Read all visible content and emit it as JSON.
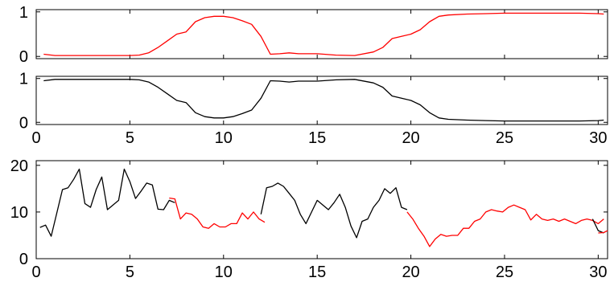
{
  "chart_data": [
    {
      "type": "line",
      "title": "",
      "xlabel": "",
      "ylabel": "",
      "xlim": [
        0,
        30.5
      ],
      "ylim": [
        -0.05,
        1.05
      ],
      "xticks": [],
      "yticks": [
        0,
        1
      ],
      "grid": false,
      "series": [
        {
          "color": "#ff0000",
          "x": [
            0.4,
            1,
            2,
            3,
            4,
            5,
            5.5,
            6,
            6.5,
            7,
            7.5,
            8,
            8.5,
            9,
            9.5,
            10,
            10.5,
            11,
            11.5,
            12,
            12.5,
            13,
            13.5,
            14,
            15,
            16,
            17,
            18,
            18.5,
            19,
            19.5,
            20,
            20.5,
            21,
            21.5,
            22,
            23,
            24,
            25,
            26,
            27,
            28,
            29,
            30,
            30.3
          ],
          "y": [
            0.05,
            0.02,
            0.02,
            0.02,
            0.02,
            0.02,
            0.03,
            0.08,
            0.2,
            0.35,
            0.5,
            0.55,
            0.78,
            0.87,
            0.9,
            0.9,
            0.87,
            0.8,
            0.72,
            0.45,
            0.05,
            0.06,
            0.08,
            0.06,
            0.06,
            0.03,
            0.02,
            0.1,
            0.2,
            0.4,
            0.45,
            0.5,
            0.6,
            0.78,
            0.9,
            0.93,
            0.95,
            0.96,
            0.97,
            0.97,
            0.97,
            0.97,
            0.97,
            0.96,
            0.95
          ]
        }
      ]
    },
    {
      "type": "line",
      "title": "",
      "xlabel": "",
      "ylabel": "",
      "xlim": [
        0,
        30.5
      ],
      "ylim": [
        -0.05,
        1.05
      ],
      "xticks": [
        0,
        5,
        10,
        15,
        20,
        25,
        30
      ],
      "yticks": [
        0,
        1
      ],
      "grid": false,
      "series": [
        {
          "color": "#000000",
          "x": [
            0.4,
            1,
            2,
            3,
            4,
            5,
            5.5,
            6,
            6.5,
            7,
            7.5,
            8,
            8.5,
            9,
            9.5,
            10,
            10.5,
            11,
            11.5,
            12,
            12.5,
            13,
            13.5,
            14,
            15,
            16,
            17,
            18,
            18.5,
            19,
            19.5,
            20,
            20.5,
            21,
            21.5,
            22,
            23,
            24,
            25,
            26,
            27,
            28,
            29,
            30,
            30.3
          ],
          "y": [
            0.95,
            0.98,
            0.98,
            0.98,
            0.98,
            0.98,
            0.97,
            0.92,
            0.8,
            0.65,
            0.5,
            0.45,
            0.22,
            0.13,
            0.1,
            0.1,
            0.13,
            0.2,
            0.28,
            0.55,
            0.95,
            0.94,
            0.92,
            0.94,
            0.94,
            0.97,
            0.98,
            0.9,
            0.8,
            0.6,
            0.55,
            0.5,
            0.4,
            0.22,
            0.1,
            0.07,
            0.05,
            0.04,
            0.03,
            0.03,
            0.03,
            0.03,
            0.03,
            0.04,
            0.05
          ]
        }
      ]
    },
    {
      "type": "line",
      "title": "",
      "xlabel": "",
      "ylabel": "",
      "xlim": [
        0,
        30.5
      ],
      "ylim": [
        0,
        21
      ],
      "xticks": [
        0,
        5,
        10,
        15,
        20,
        25,
        30
      ],
      "yticks": [
        0,
        10,
        20
      ],
      "grid": false,
      "series": [
        {
          "color": "#000000",
          "x": [
            0.2,
            0.5,
            0.8,
            1.1,
            1.4,
            1.7,
            2.0,
            2.3,
            2.6,
            2.9,
            3.2,
            3.5,
            3.8,
            4.1,
            4.4,
            4.7,
            5.0,
            5.3,
            5.6,
            5.9,
            6.2,
            6.5,
            6.8,
            7.1,
            7.4
          ],
          "y": [
            6.7,
            7.2,
            4.8,
            9.8,
            14.8,
            15.2,
            17.0,
            19.2,
            11.8,
            11.0,
            14.8,
            17.5,
            10.5,
            11.5,
            12.5,
            19.2,
            16.5,
            12.9,
            14.5,
            16.2,
            15.8,
            10.6,
            10.5,
            12.5,
            12.0
          ]
        },
        {
          "color": "#000000",
          "x": [
            12.0,
            12.3,
            12.6,
            12.9,
            13.2,
            13.5,
            13.8,
            14.1,
            14.4,
            14.7,
            15.0,
            15.3,
            15.6,
            15.9,
            16.2,
            16.5,
            16.8,
            17.1,
            17.4,
            17.7,
            18.0,
            18.3,
            18.6,
            18.9,
            19.2,
            19.5,
            19.8
          ],
          "y": [
            9.5,
            15.2,
            15.5,
            16.2,
            15.5,
            14.0,
            12.5,
            9.5,
            7.5,
            10.0,
            12.5,
            11.5,
            10.5,
            12.0,
            13.8,
            11.0,
            7.0,
            4.5,
            8.0,
            8.5,
            11.0,
            12.5,
            15.0,
            14.0,
            15.2,
            11.0,
            10.5
          ]
        },
        {
          "color": "#ff0000",
          "x": [
            7.1,
            7.4,
            7.7,
            8.0,
            8.3,
            8.6,
            8.9,
            9.2,
            9.5,
            9.8,
            10.1,
            10.4,
            10.7,
            11.0,
            11.3,
            11.6,
            11.9,
            12.2
          ],
          "y": [
            13.0,
            12.8,
            8.5,
            9.8,
            9.5,
            8.5,
            6.8,
            6.5,
            7.5,
            6.8,
            6.8,
            7.5,
            7.5,
            9.8,
            8.5,
            10.0,
            8.5,
            7.8
          ]
        },
        {
          "color": "#ff0000",
          "x": [
            19.8,
            20.1,
            20.4,
            20.7,
            21.0,
            21.3,
            21.6,
            21.9,
            22.2,
            22.5,
            22.8,
            23.1,
            23.4,
            23.7,
            24.0,
            24.3,
            24.6,
            24.9,
            25.2,
            25.5,
            25.8,
            26.1,
            26.4,
            26.7,
            27.0,
            27.3,
            27.6,
            27.9,
            28.2,
            28.5,
            28.8,
            29.1,
            29.4,
            29.7,
            30.0,
            30.3
          ],
          "y": [
            10.0,
            8.5,
            6.5,
            4.8,
            2.6,
            4.2,
            5.2,
            4.8,
            5.0,
            5.0,
            6.5,
            6.5,
            8.0,
            8.5,
            10.0,
            10.5,
            10.2,
            10.0,
            11.0,
            11.5,
            11.0,
            10.5,
            8.3,
            9.5,
            8.5,
            8.2,
            8.5,
            8.0,
            8.5,
            8.0,
            7.5,
            8.2,
            8.5,
            8.2,
            7.5,
            8.5
          ]
        },
        {
          "color": "#000000",
          "x": [
            29.7,
            30.0,
            30.3
          ],
          "y": [
            8.5,
            6.0,
            5.5
          ]
        },
        {
          "color": "#ff0000",
          "x": [
            30.0,
            30.3,
            30.5
          ],
          "y": [
            5.5,
            5.6,
            6.0
          ]
        }
      ]
    }
  ]
}
